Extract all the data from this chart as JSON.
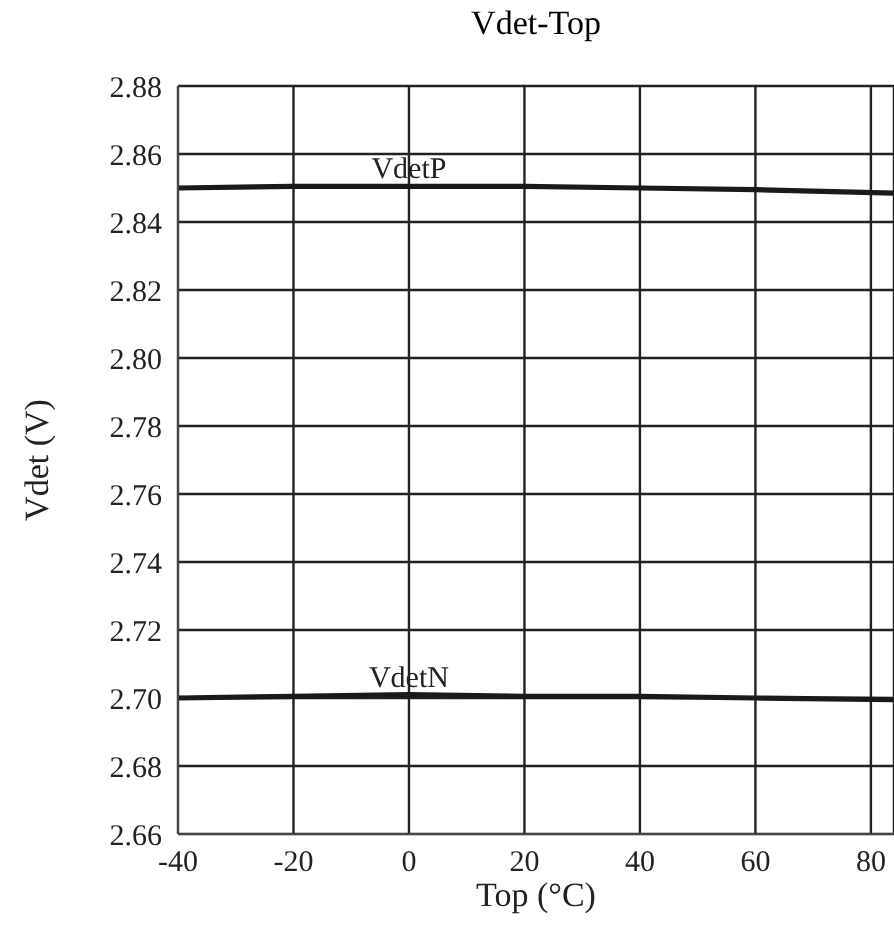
{
  "chart_data": {
    "type": "line",
    "title": "Vdet-Top",
    "xlabel": "Top (°C)",
    "ylabel": "Vdet (V)",
    "x": [
      -40,
      -20,
      0,
      20,
      40,
      60,
      84
    ],
    "series": [
      {
        "name": "VdetP",
        "color": "#1a1a1a",
        "values": [
          2.85,
          2.8505,
          2.8505,
          2.8505,
          2.85,
          2.8495,
          2.8485
        ]
      },
      {
        "name": "VdetN",
        "color": "#1a1a1a",
        "values": [
          2.7,
          2.7005,
          2.701,
          2.7005,
          2.7005,
          2.7,
          2.6995
        ]
      }
    ],
    "xlim": [
      -40,
      84
    ],
    "xticks": [
      -40,
      -20,
      0,
      20,
      40,
      60,
      80
    ],
    "ylim": [
      2.66,
      2.88
    ],
    "yticks": [
      2.66,
      2.68,
      {
        "value": 2.7,
        "label": "2.70"
      },
      2.72,
      2.74,
      2.76,
      2.78,
      {
        "value": 2.8,
        "label": "2.80"
      },
      2.82,
      2.84,
      2.86,
      2.88
    ],
    "grid": true,
    "marker": "none",
    "line_style": "solid"
  }
}
